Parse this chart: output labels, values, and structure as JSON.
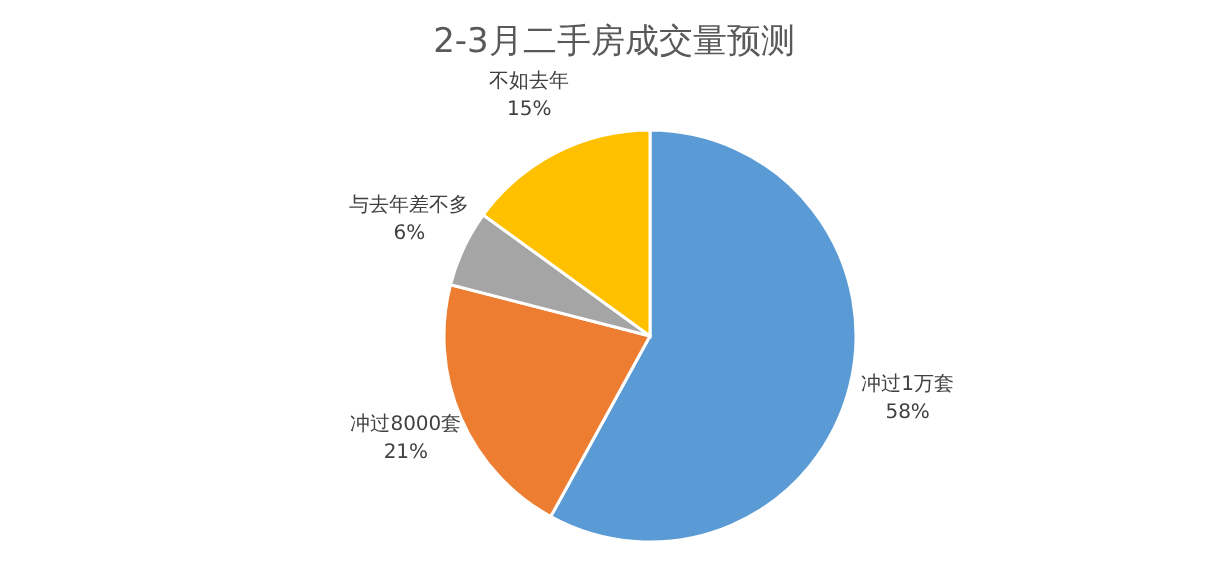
{
  "chart_data": {
    "type": "pie",
    "title": "2-3月二手房成交量预测",
    "categories": [
      "冲过1万套",
      "冲过8000套",
      "与去年差不多",
      "不如去年"
    ],
    "values": [
      58,
      21,
      6,
      15
    ],
    "value_labels": [
      "58%",
      "21%",
      "6%",
      "15%"
    ],
    "colors": [
      "#5b9bd5",
      "#ed7d31",
      "#a5a5a5",
      "#ffc000"
    ]
  }
}
